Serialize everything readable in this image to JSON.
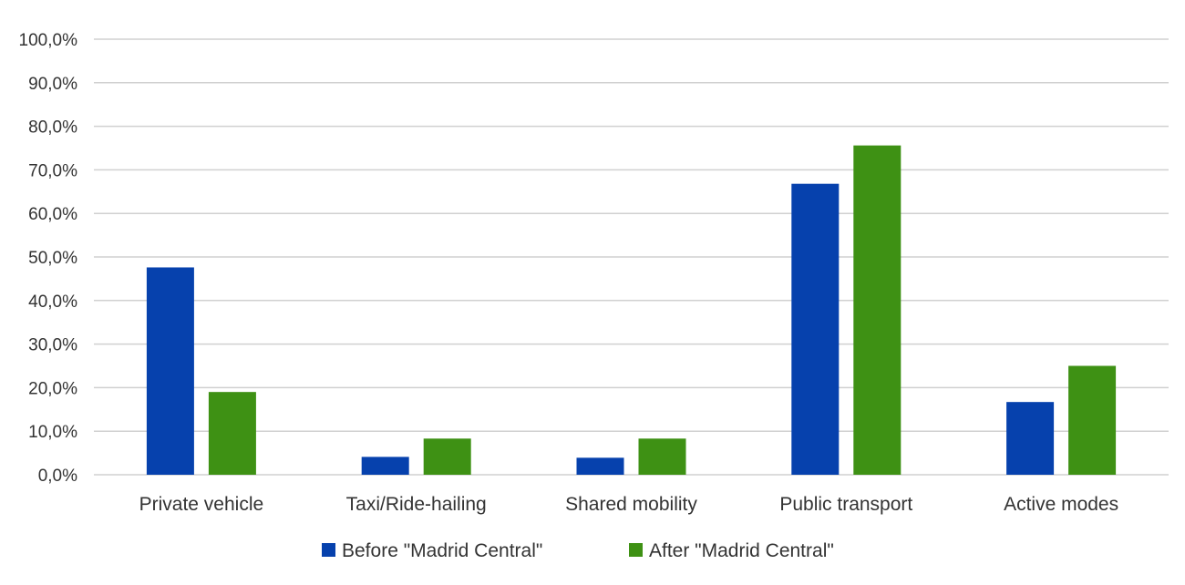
{
  "chart_data": {
    "type": "bar",
    "title": "",
    "xlabel": "",
    "ylabel": "",
    "categories": [
      "Private vehicle",
      "Taxi/Ride-hailing",
      "Shared mobility",
      "Public transport",
      "Active modes"
    ],
    "series": [
      {
        "name": "Before \"Madrid Central\"",
        "color": "#0641AD",
        "values": [
          47.6,
          4.1,
          3.9,
          66.8,
          16.7
        ]
      },
      {
        "name": "After \"Madrid Central\"",
        "color": "#3E9114",
        "values": [
          19.0,
          8.3,
          8.3,
          75.6,
          25.0
        ]
      }
    ],
    "ylim": [
      0,
      100
    ],
    "yticks": [
      0,
      10,
      20,
      30,
      40,
      50,
      60,
      70,
      80,
      90,
      100
    ],
    "ytick_labels": [
      "0,0%",
      "10,0%",
      "20,0%",
      "30,0%",
      "40,0%",
      "50,0%",
      "60,0%",
      "70,0%",
      "80,0%",
      "90,0%",
      "100,0%"
    ],
    "grid": true,
    "gridline_color": "#D0D0D0",
    "legend_position": "bottom"
  }
}
